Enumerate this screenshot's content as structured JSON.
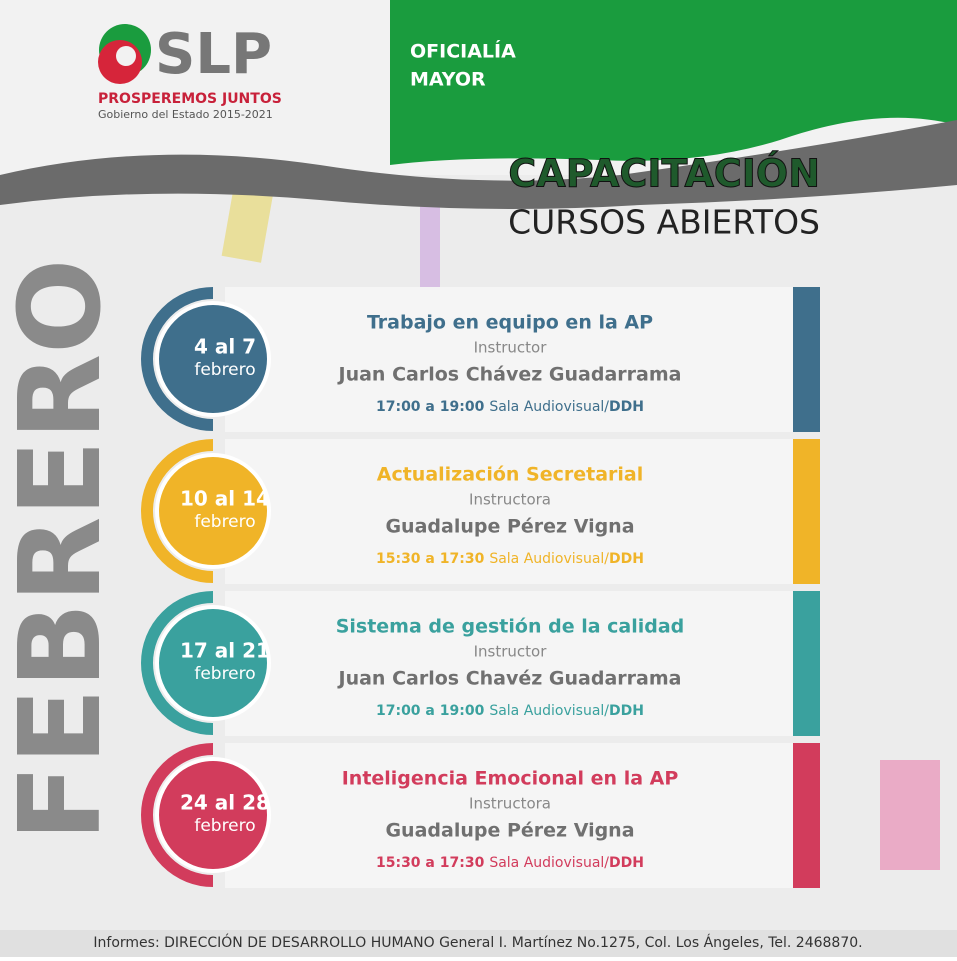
{
  "header": {
    "logo": "SLP",
    "slogan": "PROSPEREMOS JUNTOS",
    "government": "Gobierno del Estado 2015-2021",
    "office": [
      "OFICIALÍA",
      "MAYOR"
    ]
  },
  "title": "CAPACITACIÓN",
  "subtitle": "CURSOS ABIERTOS",
  "month": "FEBRERO",
  "courses": [
    {
      "dates": "4 al 7",
      "month": "febrero",
      "title": "Trabajo en equipo en la AP",
      "role": "Instructor",
      "name": "Juan Carlos Chávez Guadarrama",
      "time": "17:00 a 19:00",
      "room": "Sala Audiovisual/",
      "unit": "DDH",
      "color": "#3f6f8c"
    },
    {
      "dates": "10 al 14",
      "month": "febrero",
      "title": "Actualización Secretarial",
      "role": "Instructora",
      "name": "Guadalupe Pérez Vigna",
      "time": "15:30 a 17:30",
      "room": "Sala Audiovisual/",
      "unit": "DDH",
      "color": "#f0b428"
    },
    {
      "dates": "17 al 21",
      "month": "febrero",
      "title": "Sistema de gestión de la calidad",
      "role": "Instructor",
      "name": "Juan Carlos Chavéz Guadarrama",
      "time": "17:00 a 19:00",
      "room": "Sala Audiovisual/",
      "unit": "DDH",
      "color": "#3aa19e"
    },
    {
      "dates": "24 al 28",
      "month": "febrero",
      "title": "Inteligencia Emocional en la AP",
      "role": "Instructora",
      "name": "Guadalupe Pérez Vigna",
      "time": "15:30 a 17:30",
      "room": "Sala Audiovisual/",
      "unit": "DDH",
      "color": "#d23c5c"
    }
  ],
  "footer": "Informes: DIRECCIÓN DE DESARROLLO HUMANO General I. Martínez  No.1275,  Col. Los Ángeles, Tel. 2468870."
}
